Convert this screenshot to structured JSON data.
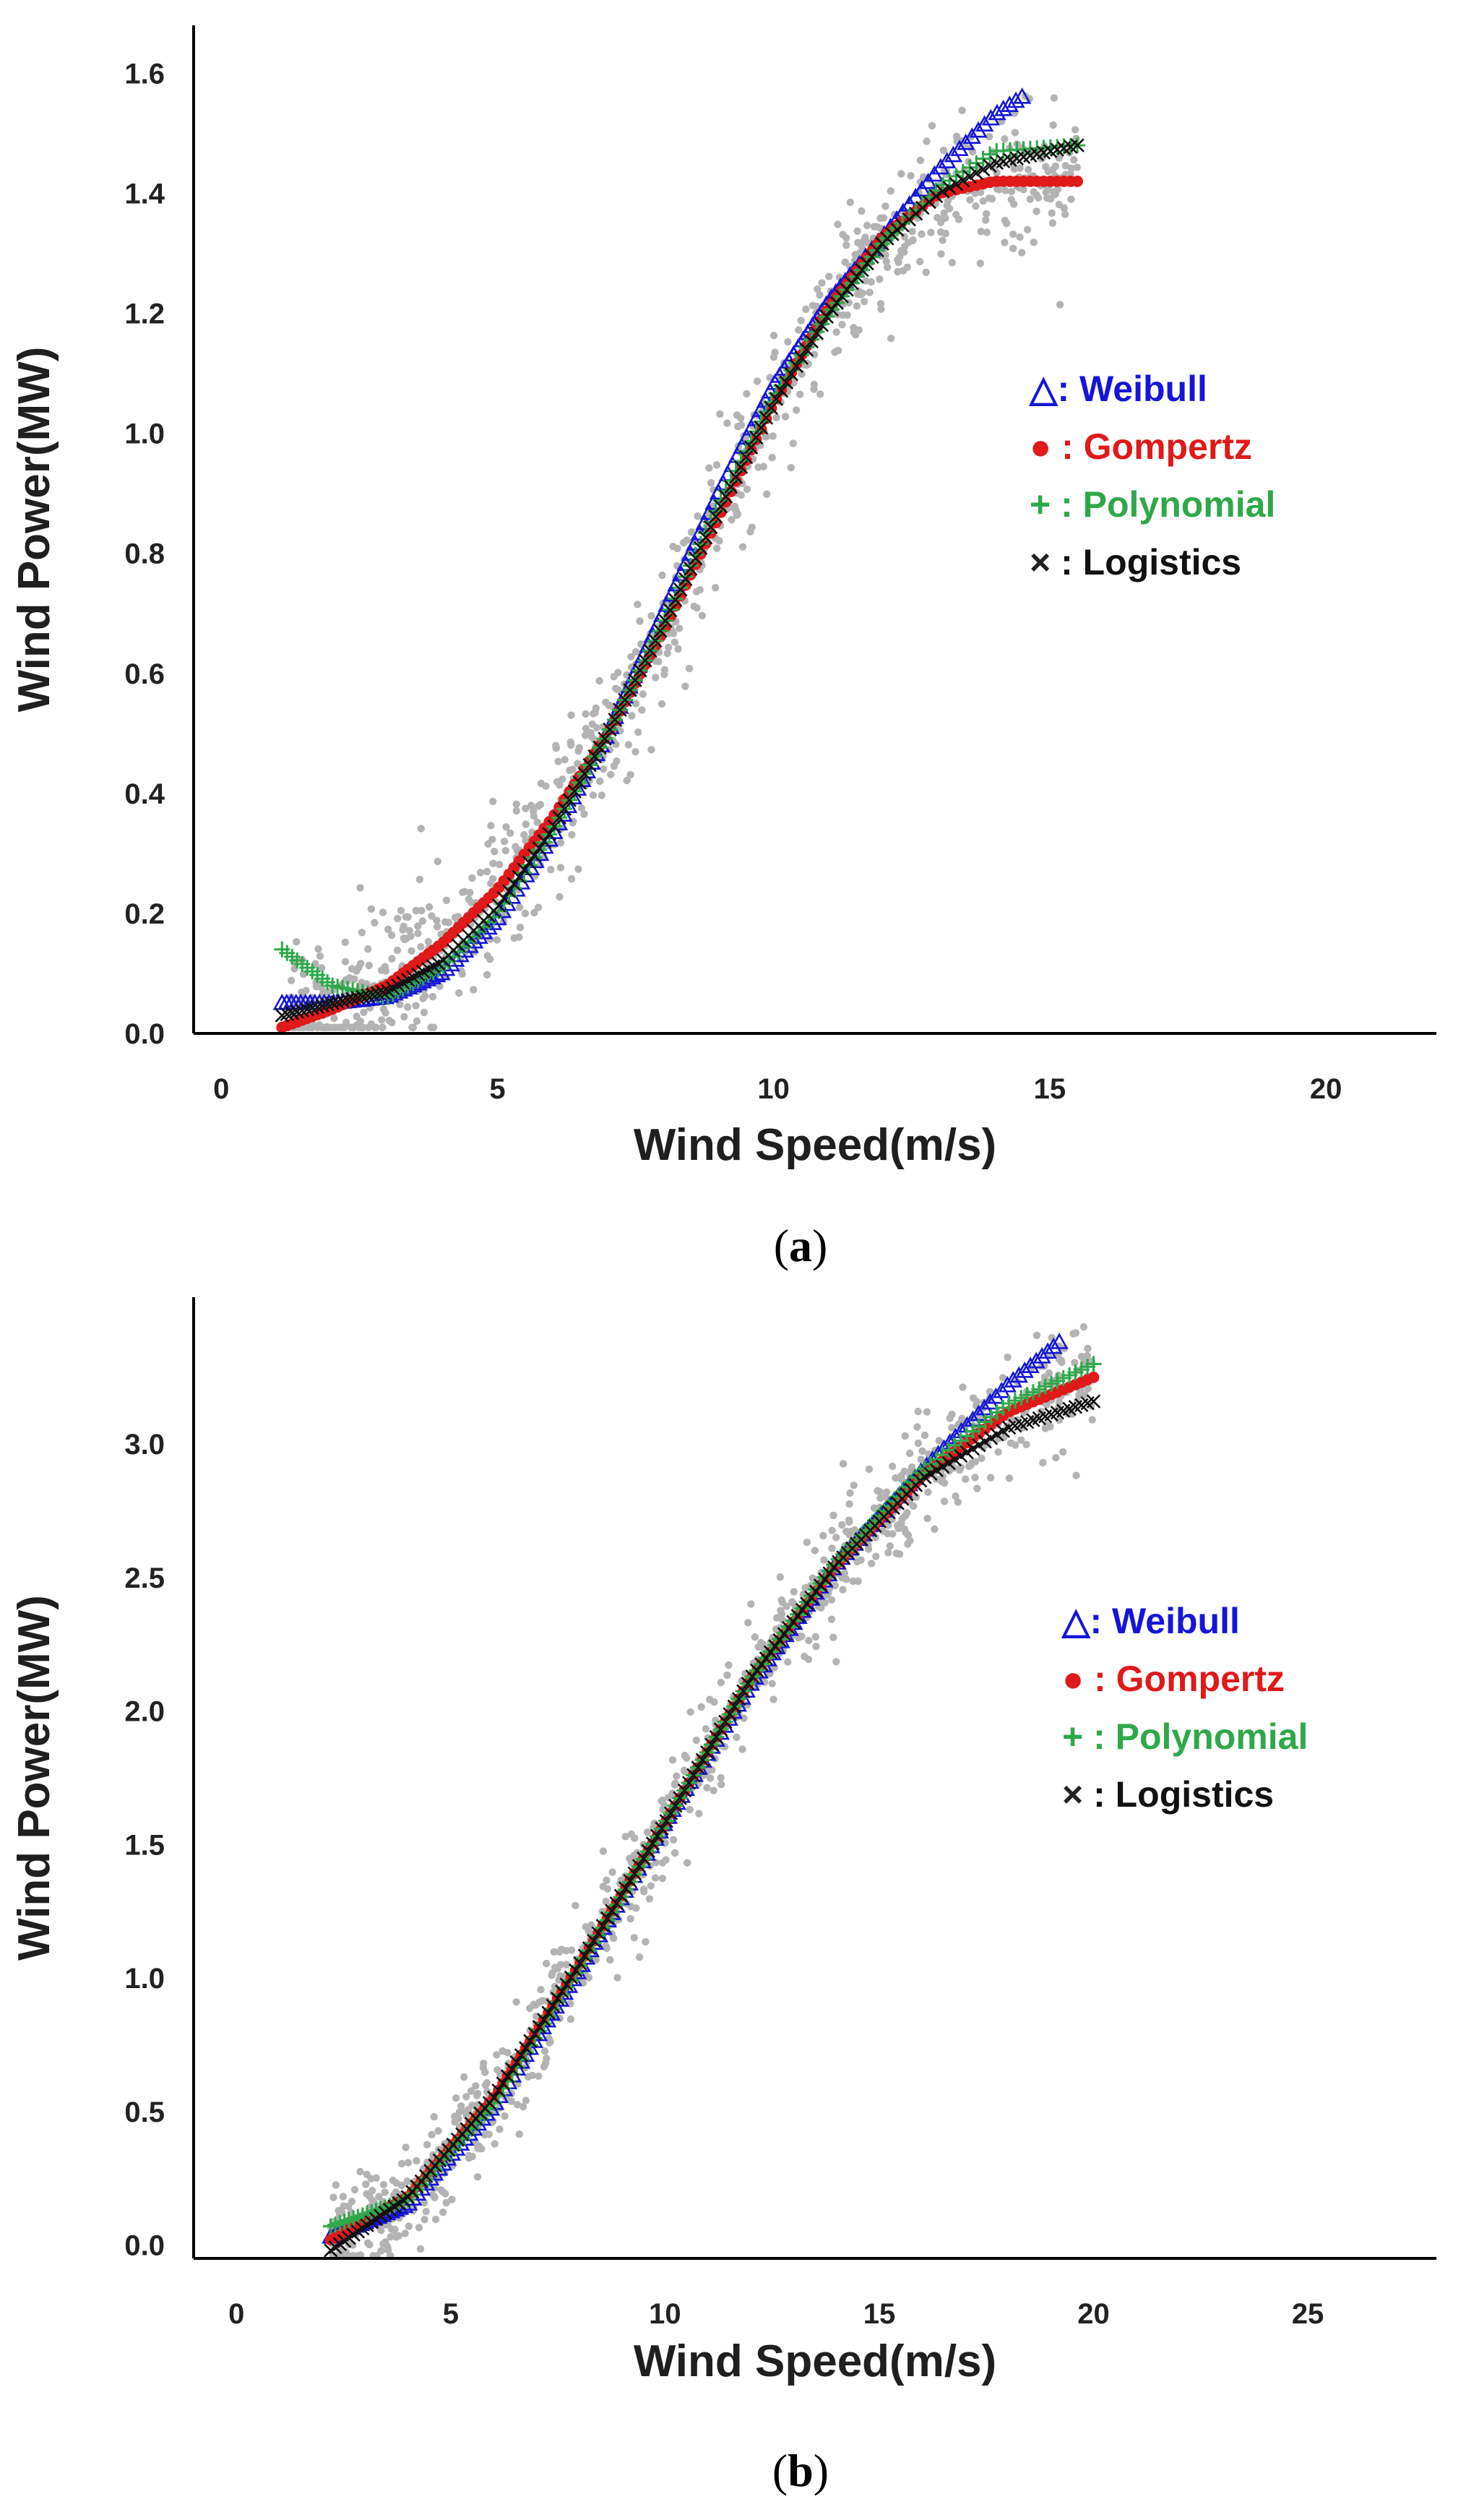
{
  "colors": {
    "observed": "#b3b3b3",
    "weibull": "#1515d9",
    "gompertz": "#e01919",
    "polynomial": "#2fa84a",
    "logistics": "#111111",
    "axis": "#000000"
  },
  "chart_data": [
    {
      "type": "scatter",
      "panel": "a",
      "caption": {
        "open": "(",
        "letter": "a",
        "close": ")"
      },
      "xlabel": "Wind Speed(m/s)",
      "ylabel": "Wind Power(MW)",
      "xlim": [
        -0.5,
        22
      ],
      "ylim": [
        0,
        1.68
      ],
      "xticks": [
        0,
        5,
        10,
        15,
        20
      ],
      "xtick_labels": [
        "0",
        "5",
        "10",
        "15",
        "20"
      ],
      "yticks": [
        0.0,
        0.2,
        0.4,
        0.6,
        0.8,
        1.0,
        1.2,
        1.4,
        1.6
      ],
      "ytick_labels": [
        "0.0",
        "0.2",
        "0.4",
        "0.6",
        "0.8",
        "1.0",
        "1.2",
        "1.4",
        "1.6"
      ],
      "grid": false,
      "legend_position": "center-right",
      "legend": [
        {
          "symbol": "△",
          "sep": ": ",
          "label": "Weibull",
          "series": "weibull"
        },
        {
          "symbol": "●",
          "sep": " : ",
          "label": "Gompertz",
          "series": "gompertz"
        },
        {
          "symbol": "+",
          "sep": " : ",
          "label": "Polynomial",
          "series": "polynomial"
        },
        {
          "symbol": "×",
          "sep": " : ",
          "label": "Logistics",
          "series": "logistics"
        }
      ],
      "observed_scatter": {
        "name": "Observed",
        "x_range": [
          1.2,
          15.5
        ],
        "count": 900,
        "noise_sd_mw": 0.065,
        "note": "grey cloud of measured points scattered around the fitted curve"
      },
      "series": [
        {
          "name": "Weibull",
          "key": "weibull",
          "marker": "triangle",
          "x_range": [
            1.1,
            14.5
          ],
          "end_value": 1.56,
          "x": [
            1.1,
            2,
            3,
            4,
            5,
            6,
            7,
            8,
            9,
            10,
            11,
            12,
            13,
            14,
            14.5
          ],
          "y": [
            0.05,
            0.05,
            0.06,
            0.1,
            0.19,
            0.33,
            0.5,
            0.7,
            0.9,
            1.08,
            1.22,
            1.33,
            1.44,
            1.53,
            1.56
          ]
        },
        {
          "name": "Gompertz",
          "key": "gompertz",
          "marker": "circle",
          "x_range": [
            1.1,
            15.5
          ],
          "end_value": 1.42,
          "x": [
            1.1,
            2,
            3,
            4,
            5,
            6,
            7,
            8,
            9,
            10,
            11,
            12,
            13,
            14,
            15.5
          ],
          "y": [
            0.01,
            0.04,
            0.08,
            0.15,
            0.24,
            0.36,
            0.5,
            0.67,
            0.86,
            1.05,
            1.21,
            1.33,
            1.4,
            1.42,
            1.42
          ]
        },
        {
          "name": "Polynomial",
          "key": "polynomial",
          "marker": "plus",
          "x_range": [
            1.1,
            15.5
          ],
          "end_value": 1.48,
          "x": [
            1.1,
            2,
            3,
            4,
            5,
            6,
            7,
            8,
            9,
            10,
            11,
            12,
            13,
            14,
            15.5
          ],
          "y": [
            0.14,
            0.08,
            0.06,
            0.11,
            0.2,
            0.34,
            0.5,
            0.68,
            0.88,
            1.06,
            1.2,
            1.32,
            1.41,
            1.47,
            1.48
          ]
        },
        {
          "name": "Logistics",
          "key": "logistics",
          "marker": "cross",
          "x_range": [
            1.1,
            15.5
          ],
          "end_value": 1.48,
          "x": [
            1.1,
            2,
            3,
            4,
            5,
            6,
            7,
            8,
            9,
            10,
            11,
            12,
            13,
            14,
            15.5
          ],
          "y": [
            0.03,
            0.05,
            0.07,
            0.12,
            0.21,
            0.34,
            0.5,
            0.68,
            0.87,
            1.05,
            1.2,
            1.32,
            1.4,
            1.45,
            1.48
          ]
        }
      ]
    },
    {
      "type": "scatter",
      "panel": "b",
      "caption": {
        "open": "(",
        "letter": "b",
        "close": ")"
      },
      "xlabel": "Wind Speed(m/s)",
      "ylabel": "Wind Power(MW)",
      "xlim": [
        -1,
        28
      ],
      "ylim": [
        -0.05,
        3.55
      ],
      "xticks": [
        0,
        5,
        10,
        15,
        20,
        25
      ],
      "xtick_labels": [
        "0",
        "5",
        "10",
        "15",
        "20",
        "25"
      ],
      "yticks": [
        0.0,
        0.5,
        1.0,
        1.5,
        2.0,
        2.5,
        3.0
      ],
      "ytick_labels": [
        "0.0",
        "0.5",
        "1.0",
        "1.5",
        "2.0",
        "2.5",
        "3.0"
      ],
      "grid": false,
      "legend_position": "center-right",
      "legend": [
        {
          "symbol": "△",
          "sep": ": ",
          "label": "Weibull",
          "series": "weibull"
        },
        {
          "symbol": "●",
          "sep": " : ",
          "label": "Gompertz",
          "series": "gompertz"
        },
        {
          "symbol": "+",
          "sep": " : ",
          "label": "Polynomial",
          "series": "polynomial"
        },
        {
          "symbol": "×",
          "sep": " : ",
          "label": "Logistics",
          "series": "logistics"
        }
      ],
      "observed_scatter": {
        "name": "Observed",
        "x_range": [
          2.2,
          20
        ],
        "count": 900,
        "noise_sd_mw": 0.11,
        "note": "grey cloud of measured points scattered around the fitted curve"
      },
      "series": [
        {
          "name": "Weibull",
          "key": "weibull",
          "marker": "triangle",
          "x_range": [
            2.2,
            19.2
          ],
          "end_value": 3.38,
          "x": [
            2.2,
            4,
            6,
            8,
            10,
            12,
            14,
            16,
            18,
            19.2
          ],
          "y": [
            0.03,
            0.15,
            0.52,
            1.03,
            1.58,
            2.1,
            2.55,
            2.9,
            3.22,
            3.38
          ]
        },
        {
          "name": "Gompertz",
          "key": "gompertz",
          "marker": "circle",
          "x_range": [
            2.2,
            20
          ],
          "end_value": 3.25,
          "x": [
            2.2,
            4,
            6,
            8,
            10,
            12,
            14,
            16,
            18,
            20
          ],
          "y": [
            0.02,
            0.18,
            0.55,
            1.05,
            1.58,
            2.12,
            2.55,
            2.88,
            3.12,
            3.25
          ]
        },
        {
          "name": "Polynomial",
          "key": "polynomial",
          "marker": "plus",
          "x_range": [
            2.2,
            20
          ],
          "end_value": 3.3,
          "x": [
            2.2,
            4,
            6,
            8,
            10,
            12,
            14,
            16,
            18,
            20
          ],
          "y": [
            0.07,
            0.17,
            0.53,
            1.04,
            1.58,
            2.12,
            2.56,
            2.9,
            3.15,
            3.3
          ]
        },
        {
          "name": "Logistics",
          "key": "logistics",
          "marker": "cross",
          "x_range": [
            2.2,
            20
          ],
          "end_value": 3.16,
          "x": [
            2.2,
            4,
            6,
            8,
            10,
            12,
            14,
            16,
            18,
            20
          ],
          "y": [
            -0.02,
            0.18,
            0.55,
            1.05,
            1.58,
            2.12,
            2.55,
            2.87,
            3.06,
            3.16
          ]
        }
      ]
    }
  ]
}
